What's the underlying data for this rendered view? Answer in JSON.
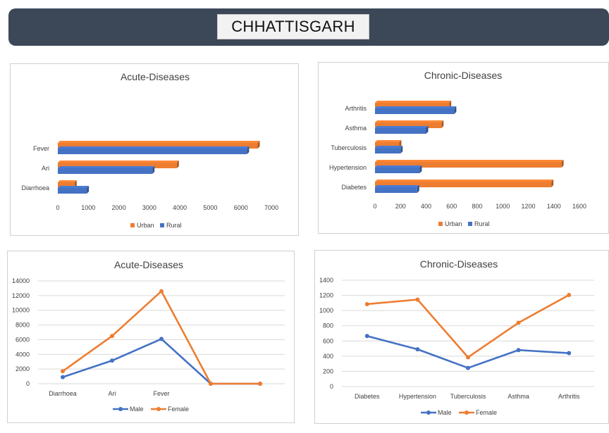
{
  "header": {
    "title": "CHHATTISGARH"
  },
  "colors": {
    "urban": "#ed7d31",
    "rural": "#4472c4",
    "male": "#4472c4",
    "female": "#ed7d31",
    "header_bg": "#3c4858"
  },
  "chart_data": [
    {
      "id": "acute-bar",
      "type": "bar",
      "orientation": "horizontal",
      "title": "Acute-Diseases",
      "categories": [
        "Diarrhoea",
        "Ari",
        "Fever"
      ],
      "series": [
        {
          "name": "Urban",
          "values": [
            550,
            3900,
            6550
          ]
        },
        {
          "name": "Rural",
          "values": [
            950,
            3100,
            6200
          ]
        }
      ],
      "xlim": [
        0,
        7000
      ],
      "xticks": [
        0,
        1000,
        2000,
        3000,
        4000,
        5000,
        6000,
        7000
      ],
      "grid": false,
      "legend": "bottom"
    },
    {
      "id": "chronic-bar",
      "type": "bar",
      "orientation": "horizontal",
      "title": "Chronic-Diseases",
      "categories": [
        "Diabetes",
        "Hypertension",
        "Tuberculosis",
        "Asthma",
        "Arthritis"
      ],
      "series": [
        {
          "name": "Urban",
          "values": [
            1380,
            1460,
            190,
            520,
            580
          ]
        },
        {
          "name": "Rural",
          "values": [
            330,
            350,
            200,
            400,
            620
          ]
        }
      ],
      "xlim": [
        0,
        1600
      ],
      "xticks": [
        0,
        200,
        400,
        600,
        800,
        1000,
        1200,
        1400,
        1600
      ],
      "grid": false,
      "legend": "bottom"
    },
    {
      "id": "acute-line",
      "type": "line",
      "title": "Acute-Diseases",
      "categories": [
        "Diarrhoea",
        "Ari",
        "Fever",
        "",
        ""
      ],
      "series": [
        {
          "name": "Male",
          "values": [
            900,
            3150,
            6100,
            0,
            0
          ]
        },
        {
          "name": "Female",
          "values": [
            1700,
            6500,
            12600,
            0,
            0
          ]
        }
      ],
      "ylim": [
        0,
        14000
      ],
      "yticks": [
        0,
        2000,
        4000,
        6000,
        8000,
        10000,
        12000,
        14000
      ],
      "grid": true,
      "legend": "bottom"
    },
    {
      "id": "chronic-line",
      "type": "line",
      "title": "Chronic-Diseases",
      "categories": [
        "Diabetes",
        "Hypertension",
        "Tuberculosis",
        "Asthma",
        "Arthritis"
      ],
      "series": [
        {
          "name": "Male",
          "values": [
            665,
            490,
            245,
            480,
            440
          ]
        },
        {
          "name": "Female",
          "values": [
            1085,
            1145,
            385,
            840,
            1205
          ]
        }
      ],
      "ylim": [
        0,
        1400
      ],
      "yticks": [
        0,
        200,
        400,
        600,
        800,
        1000,
        1200,
        1400
      ],
      "grid": true,
      "legend": "bottom"
    }
  ]
}
